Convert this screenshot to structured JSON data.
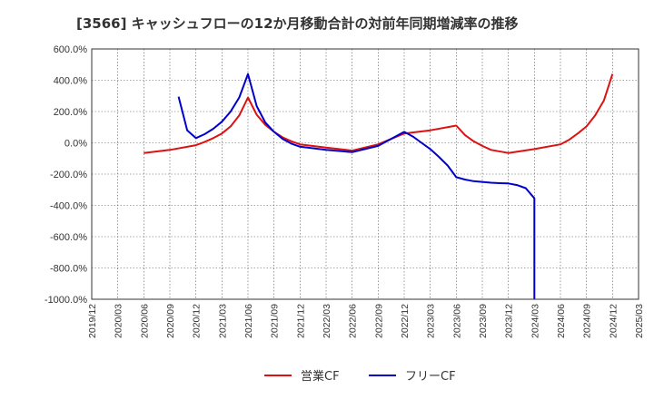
{
  "chart_data": {
    "type": "line",
    "title": "[3566]  キャッシュフローの12か月移動合計の対前年同期増減率の推移",
    "xlabel": "",
    "ylabel": "",
    "ylim": [
      -1000,
      600
    ],
    "yticks": [
      600,
      400,
      200,
      0,
      -200,
      -400,
      -600,
      -800,
      -1000
    ],
    "ytick_labels": [
      "600.0%",
      "400.0%",
      "200.0%",
      "0.0%",
      "-200.0%",
      "-400.0%",
      "-600.0%",
      "-800.0%",
      "-1000.0%"
    ],
    "xticks": [
      "2019/12",
      "2020/03",
      "2020/06",
      "2020/09",
      "2020/12",
      "2021/03",
      "2021/06",
      "2021/09",
      "2021/12",
      "2022/03",
      "2022/06",
      "2022/09",
      "2022/12",
      "2023/03",
      "2023/06",
      "2023/09",
      "2023/12",
      "2024/03",
      "2024/06",
      "2024/09",
      "2024/12",
      "2025/03"
    ],
    "grid": true,
    "legend_position": "bottom",
    "series": [
      {
        "name": "営業CF",
        "color": "#dd1111",
        "points": [
          [
            "2020/06",
            -65
          ],
          [
            "2020/09",
            -45
          ],
          [
            "2020/12",
            -15
          ],
          [
            "2021/01",
            5
          ],
          [
            "2021/02",
            30
          ],
          [
            "2021/03",
            60
          ],
          [
            "2021/04",
            105
          ],
          [
            "2021/05",
            175
          ],
          [
            "2021/06",
            290
          ],
          [
            "2021/07",
            180
          ],
          [
            "2021/08",
            115
          ],
          [
            "2021/09",
            70
          ],
          [
            "2021/10",
            35
          ],
          [
            "2021/11",
            10
          ],
          [
            "2021/12",
            -10
          ],
          [
            "2022/03",
            -30
          ],
          [
            "2022/06",
            -50
          ],
          [
            "2022/09",
            -10
          ],
          [
            "2022/12",
            60
          ],
          [
            "2023/03",
            80
          ],
          [
            "2023/06",
            110
          ],
          [
            "2023/07",
            50
          ],
          [
            "2023/08",
            10
          ],
          [
            "2023/09",
            -20
          ],
          [
            "2023/10",
            -45
          ],
          [
            "2023/12",
            -65
          ],
          [
            "2024/03",
            -40
          ],
          [
            "2024/06",
            -10
          ],
          [
            "2024/07",
            20
          ],
          [
            "2024/08",
            60
          ],
          [
            "2024/09",
            105
          ],
          [
            "2024/10",
            175
          ],
          [
            "2024/11",
            270
          ],
          [
            "2024/12",
            440
          ]
        ]
      },
      {
        "name": "フリーCF",
        "color": "#0000cc",
        "points": [
          [
            "2020/10",
            295
          ],
          [
            "2020/11",
            80
          ],
          [
            "2020/12",
            30
          ],
          [
            "2021/01",
            55
          ],
          [
            "2021/02",
            90
          ],
          [
            "2021/03",
            135
          ],
          [
            "2021/04",
            200
          ],
          [
            "2021/05",
            290
          ],
          [
            "2021/06",
            440
          ],
          [
            "2021/07",
            235
          ],
          [
            "2021/08",
            130
          ],
          [
            "2021/09",
            70
          ],
          [
            "2021/10",
            25
          ],
          [
            "2021/11",
            -5
          ],
          [
            "2021/12",
            -25
          ],
          [
            "2022/03",
            -45
          ],
          [
            "2022/06",
            -60
          ],
          [
            "2022/09",
            -20
          ],
          [
            "2022/12",
            70
          ],
          [
            "2023/01",
            40
          ],
          [
            "2023/02",
            0
          ],
          [
            "2023/03",
            -40
          ],
          [
            "2023/04",
            -90
          ],
          [
            "2023/05",
            -145
          ],
          [
            "2023/06",
            -220
          ],
          [
            "2023/07",
            -235
          ],
          [
            "2023/08",
            -245
          ],
          [
            "2023/09",
            -250
          ],
          [
            "2023/10",
            -255
          ],
          [
            "2023/11",
            -258
          ],
          [
            "2023/12",
            -260
          ],
          [
            "2024/01",
            -270
          ],
          [
            "2024/02",
            -290
          ],
          [
            "2024/03",
            -355
          ],
          [
            "2024/03",
            -1000
          ]
        ]
      }
    ]
  }
}
